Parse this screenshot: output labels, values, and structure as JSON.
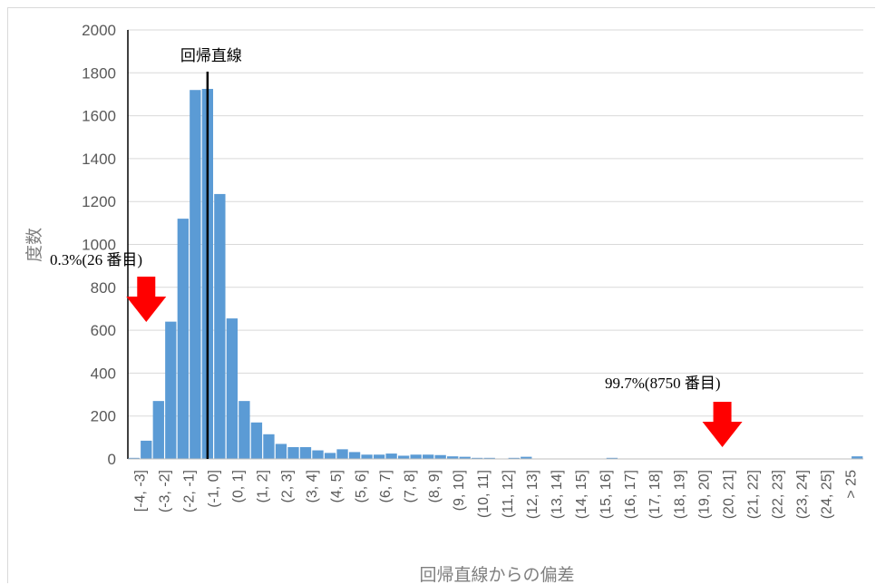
{
  "chart_data": {
    "type": "bar",
    "xlabel": "回帰直線からの偏差",
    "ylabel": "度数",
    "ylim": [
      0,
      2000
    ],
    "yticks": [
      0,
      200,
      400,
      600,
      800,
      1000,
      1200,
      1400,
      1600,
      1800,
      2000
    ],
    "grid": true,
    "bar_color": "#5b9bd5",
    "categories": [
      "[-4, -3]",
      "(-3, -2]",
      "(-2, -1]",
      "(-1, 0]",
      "(0, 1]",
      "(1, 2]",
      "(2, 3]",
      "(3, 4]",
      "(4, 5]",
      "(5, 6]",
      "(6, 7]",
      "(7, 8]",
      "(8, 9]",
      "(9, 10]",
      "(10, 11]",
      "(11, 12]",
      "(12, 13]",
      "(13, 14]",
      "(14, 15]",
      "(15, 16]",
      "(16, 17]",
      "(17, 18]",
      "(18, 19]",
      "(19, 20]",
      "(20, 21]",
      "(21, 22]",
      "(22, 23]",
      "(23, 24]",
      "(24, 25]",
      "> 25"
    ],
    "bins": [
      {
        "x": -4.0,
        "value": 5
      },
      {
        "x": -3.5,
        "value": 85
      },
      {
        "x": -3.0,
        "value": 270
      },
      {
        "x": -2.5,
        "value": 640
      },
      {
        "x": -2.0,
        "value": 1120
      },
      {
        "x": -1.5,
        "value": 1720
      },
      {
        "x": -1.0,
        "value": 1725
      },
      {
        "x": -0.5,
        "value": 1235
      },
      {
        "x": 0.0,
        "value": 655
      },
      {
        "x": 0.5,
        "value": 270
      },
      {
        "x": 1.0,
        "value": 170
      },
      {
        "x": 1.5,
        "value": 115
      },
      {
        "x": 2.0,
        "value": 70
      },
      {
        "x": 2.5,
        "value": 55
      },
      {
        "x": 3.0,
        "value": 55
      },
      {
        "x": 3.5,
        "value": 40
      },
      {
        "x": 4.0,
        "value": 28
      },
      {
        "x": 4.5,
        "value": 45
      },
      {
        "x": 5.0,
        "value": 32
      },
      {
        "x": 5.5,
        "value": 20
      },
      {
        "x": 6.0,
        "value": 20
      },
      {
        "x": 6.5,
        "value": 25
      },
      {
        "x": 7.0,
        "value": 15
      },
      {
        "x": 7.5,
        "value": 20
      },
      {
        "x": 8.0,
        "value": 20
      },
      {
        "x": 8.5,
        "value": 18
      },
      {
        "x": 9.0,
        "value": 12
      },
      {
        "x": 9.5,
        "value": 10
      },
      {
        "x": 10.0,
        "value": 5
      },
      {
        "x": 10.5,
        "value": 5
      },
      {
        "x": 11.0,
        "value": 2
      },
      {
        "x": 11.5,
        "value": 5
      },
      {
        "x": 12.0,
        "value": 10
      },
      {
        "x": 12.5,
        "value": 2
      },
      {
        "x": 13.0,
        "value": 1
      },
      {
        "x": 13.5,
        "value": 1
      },
      {
        "x": 14.0,
        "value": 1
      },
      {
        "x": 14.5,
        "value": 1
      },
      {
        "x": 15.0,
        "value": 1
      },
      {
        "x": 15.5,
        "value": 5
      },
      {
        "x": 16.0,
        "value": 1
      },
      {
        "x": 16.5,
        "value": 1
      },
      {
        "x": 17.0,
        "value": 1
      },
      {
        "x": 17.5,
        "value": 1
      },
      {
        "x": 18.0,
        "value": 1
      },
      {
        "x": 18.5,
        "value": 1
      },
      {
        "x": 19.0,
        "value": 1
      },
      {
        "x": 19.5,
        "value": 1
      },
      {
        "x": 20.0,
        "value": 1
      },
      {
        "x": 20.5,
        "value": 1
      },
      {
        "x": 21.0,
        "value": 1
      },
      {
        "x": 21.5,
        "value": 1
      },
      {
        "x": 22.0,
        "value": 1
      },
      {
        "x": 22.5,
        "value": 1
      },
      {
        "x": 23.0,
        "value": 1
      },
      {
        "x": 23.5,
        "value": 1
      },
      {
        "x": 24.0,
        "value": 1
      },
      {
        "x": 24.5,
        "value": 1
      },
      {
        "x": 25.0,
        "value": 1
      },
      {
        "x": 25.5,
        "value": 12
      }
    ],
    "regression_line": {
      "label": "回帰直線",
      "x": -1.0,
      "color": "#000000"
    },
    "annotations": [
      {
        "text": "0.3%(26 番目)",
        "x": -3.5,
        "arrow_color": "#ff0000"
      },
      {
        "text": "99.7%(8750 番目)",
        "x": 20.0,
        "arrow_color": "#ff0000"
      }
    ]
  }
}
